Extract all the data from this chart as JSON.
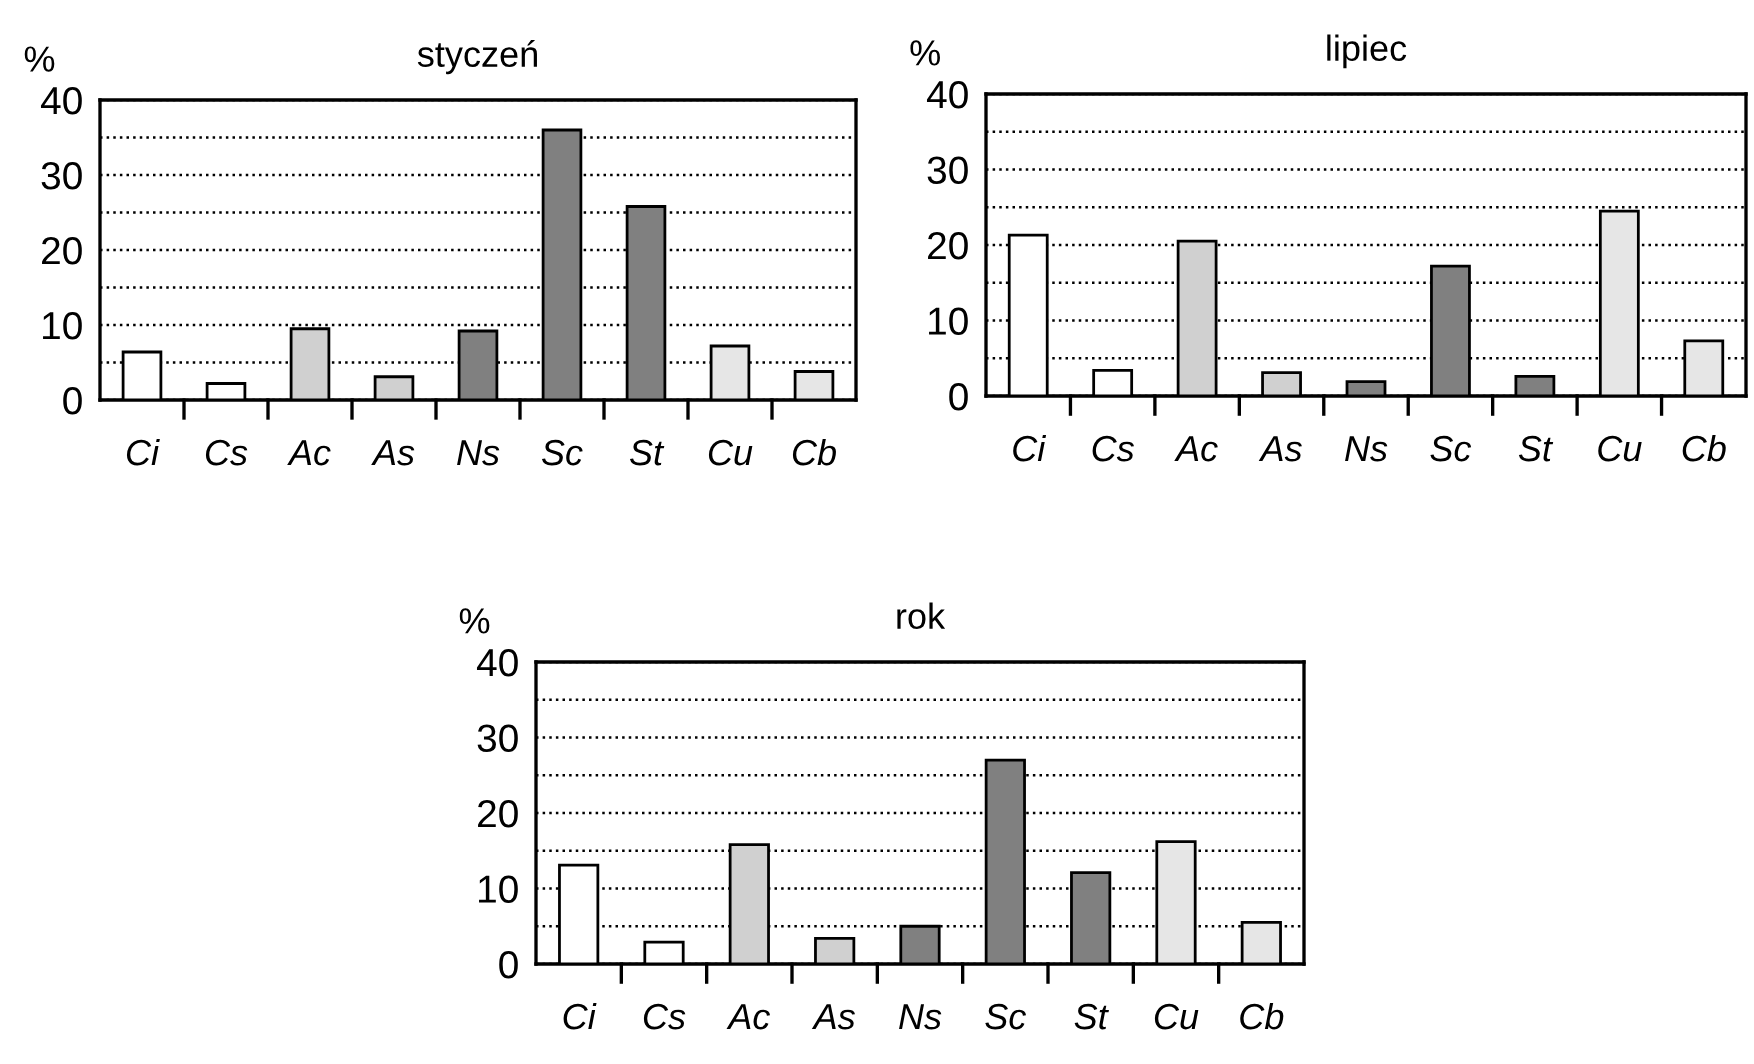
{
  "chart_data": [
    {
      "type": "bar",
      "title": "styczeń",
      "ylabel": "%",
      "categories": [
        "Ci",
        "Cs",
        "Ac",
        "As",
        "Ns",
        "Sc",
        "St",
        "Cu",
        "Cb"
      ],
      "values": [
        6.4,
        2.2,
        9.5,
        3.1,
        9.2,
        36,
        25.8,
        7.2,
        3.8
      ],
      "colors": [
        "#ffffff",
        "#ffffff",
        "#d0d0d0",
        "#d0d0d0",
        "#808080",
        "#808080",
        "#808080",
        "#e6e6e6",
        "#e6e6e6"
      ],
      "ylim": [
        0,
        40
      ],
      "yticks": [
        0,
        {
          "value": 5,
          "label": null
        },
        10,
        {
          "value": 15,
          "label": null
        },
        20,
        {
          "value": 25,
          "label": null
        },
        30,
        {
          "value": 35,
          "label": null
        },
        40
      ],
      "grid": "y",
      "line_style": "dotted"
    },
    {
      "type": "bar",
      "title": "lipiec",
      "ylabel": "%",
      "categories": [
        "Ci",
        "Cs",
        "Ac",
        "As",
        "Ns",
        "Sc",
        "St",
        "Cu",
        "Cb"
      ],
      "values": [
        21.3,
        3.4,
        20.5,
        3.1,
        1.9,
        17.2,
        2.6,
        24.5,
        7.3
      ],
      "colors": [
        "#ffffff",
        "#ffffff",
        "#d0d0d0",
        "#d0d0d0",
        "#808080",
        "#808080",
        "#808080",
        "#e6e6e6",
        "#e6e6e6"
      ],
      "ylim": [
        0,
        40
      ],
      "yticks": [
        0,
        {
          "value": 5,
          "label": null
        },
        10,
        {
          "value": 15,
          "label": null
        },
        20,
        {
          "value": 25,
          "label": null
        },
        30,
        {
          "value": 35,
          "label": null
        },
        40
      ],
      "grid": "y",
      "line_style": "dotted"
    },
    {
      "type": "bar",
      "title": "rok",
      "ylabel": "%",
      "categories": [
        "Ci",
        "Cs",
        "Ac",
        "As",
        "Ns",
        "Sc",
        "St",
        "Cu",
        "Cb"
      ],
      "values": [
        13.1,
        2.9,
        15.8,
        3.4,
        5.0,
        27,
        12.1,
        16.2,
        5.5
      ],
      "colors": [
        "#ffffff",
        "#ffffff",
        "#d0d0d0",
        "#d0d0d0",
        "#808080",
        "#808080",
        "#808080",
        "#e6e6e6",
        "#e6e6e6"
      ],
      "ylim": [
        0,
        40
      ],
      "yticks": [
        0,
        {
          "value": 5,
          "label": null
        },
        10,
        {
          "value": 15,
          "label": null
        },
        20,
        {
          "value": 25,
          "label": null
        },
        30,
        {
          "value": 35,
          "label": null
        },
        40
      ],
      "grid": "y",
      "line_style": "dotted"
    }
  ]
}
